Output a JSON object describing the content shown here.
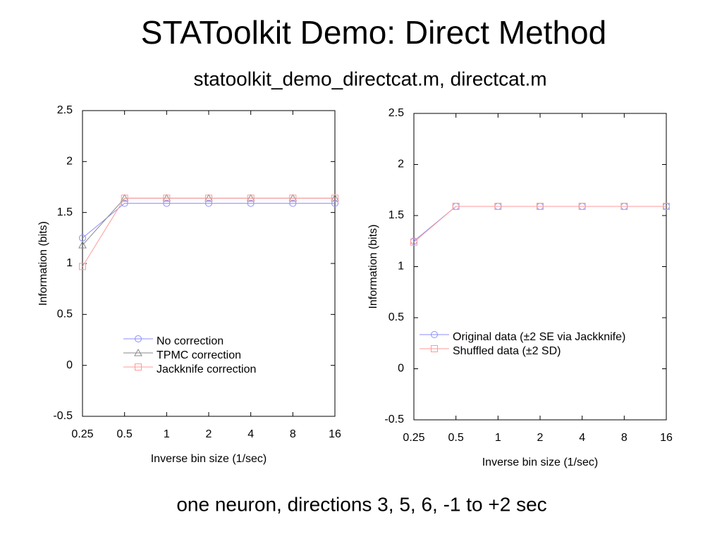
{
  "title": "STAToolkit Demo: Direct Method",
  "subtitle": "statoolkit_demo_directcat.m, directcat.m",
  "caption": "one neuron, directions 3, 5, 6, -1 to +2 sec",
  "chart_data": [
    {
      "type": "line",
      "x_label": "Inverse bin size (1/sec)",
      "y_label": "Information (bits)",
      "x": [
        0.25,
        0.5,
        1,
        2,
        4,
        8,
        16
      ],
      "xscale": "log",
      "xlim": [
        0.25,
        16
      ],
      "xticks": [
        0.25,
        0.5,
        1,
        2,
        4,
        8,
        16
      ],
      "ylim": [
        -0.5,
        2.5
      ],
      "yticks": [
        -0.5,
        0,
        0.5,
        1,
        1.5,
        2,
        2.5
      ],
      "series": [
        {
          "name": "No correction",
          "color": "#8c8cff",
          "marker": "circle",
          "values": [
            1.25,
            1.59,
            1.59,
            1.59,
            1.59,
            1.59,
            1.59
          ]
        },
        {
          "name": "TPMC correction",
          "color": "#8a8a8a",
          "marker": "triangle",
          "values": [
            1.18,
            1.64,
            1.64,
            1.64,
            1.64,
            1.64,
            1.64
          ]
        },
        {
          "name": "Jackknife correction",
          "color": "#ff9a9a",
          "marker": "square",
          "values": [
            0.97,
            1.64,
            1.64,
            1.64,
            1.64,
            1.64,
            1.64
          ]
        }
      ]
    },
    {
      "type": "line",
      "x_label": "Inverse bin size (1/sec)",
      "y_label": "Information (bits)",
      "x": [
        0.25,
        0.5,
        1,
        2,
        4,
        8,
        16
      ],
      "xscale": "log",
      "xlim": [
        0.25,
        16
      ],
      "xticks": [
        0.25,
        0.5,
        1,
        2,
        4,
        8,
        16
      ],
      "ylim": [
        -0.5,
        2.5
      ],
      "yticks": [
        -0.5,
        0,
        0.5,
        1,
        1.5,
        2,
        2.5
      ],
      "series": [
        {
          "name": "Original data (±2 SE via Jackknife)",
          "color": "#8c8cff",
          "marker": "circle",
          "values": [
            1.25,
            1.59,
            1.59,
            1.59,
            1.59,
            1.59,
            1.59
          ]
        },
        {
          "name": "Shuffled data (±2 SD)",
          "color": "#ff9a9a",
          "marker": "square",
          "values": [
            1.24,
            1.59,
            1.59,
            1.59,
            1.59,
            1.59,
            1.59
          ]
        }
      ]
    }
  ]
}
